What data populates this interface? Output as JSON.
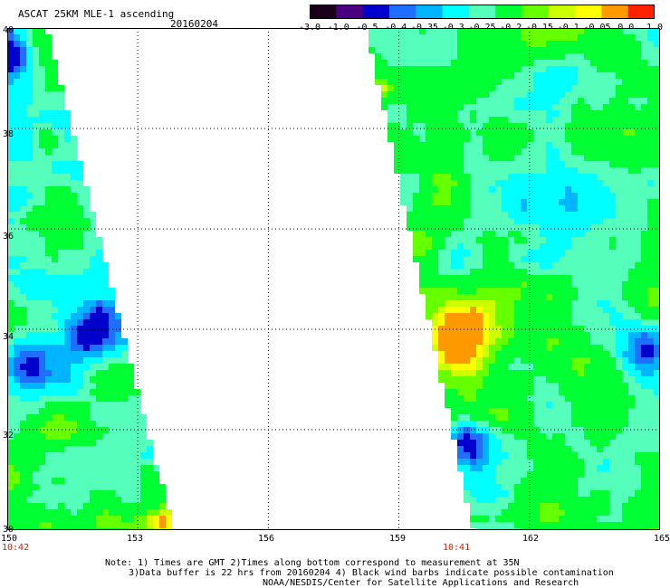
{
  "header": {
    "title": "ASCAT 25KM MLE-1 ascending",
    "date": "20160204"
  },
  "colorbar": {
    "labels": [
      "-3.0",
      "-1.0",
      "-0.5",
      "-0.4",
      "-0.35",
      "-0.3",
      "-0.25",
      "-0.2",
      "-0.15",
      "-0.1",
      "-0.05",
      "0.0",
      "1.0"
    ],
    "colors": [
      "#1a001a",
      "#4b0082",
      "#0000cd",
      "#1e6fff",
      "#00b4ff",
      "#00ffff",
      "#55ffbb",
      "#00ff33",
      "#66ff00",
      "#ccff00",
      "#ffff00",
      "#ff9900",
      "#ff2200"
    ]
  },
  "map": {
    "lat_labels": [
      "40",
      "38",
      "36",
      "34",
      "32",
      "30"
    ],
    "lon_labels": [
      "150",
      "153",
      "156",
      "159",
      "162",
      "165"
    ],
    "time_labels": [
      "10:42",
      "10:41"
    ],
    "lat_range": [
      30,
      40
    ],
    "lon_range": [
      150,
      165
    ],
    "gridlines": true
  },
  "notes": {
    "line1": "Note: 1) Times are GMT 2)Times along bottom correspond to measurement at 35N",
    "line2": "3)Data buffer is 22 hrs from 20160204 4) Black wind barbs indicate possible contamination",
    "line3": "NOAA/NESDIS/Center for Satellite Applications and Research"
  }
}
